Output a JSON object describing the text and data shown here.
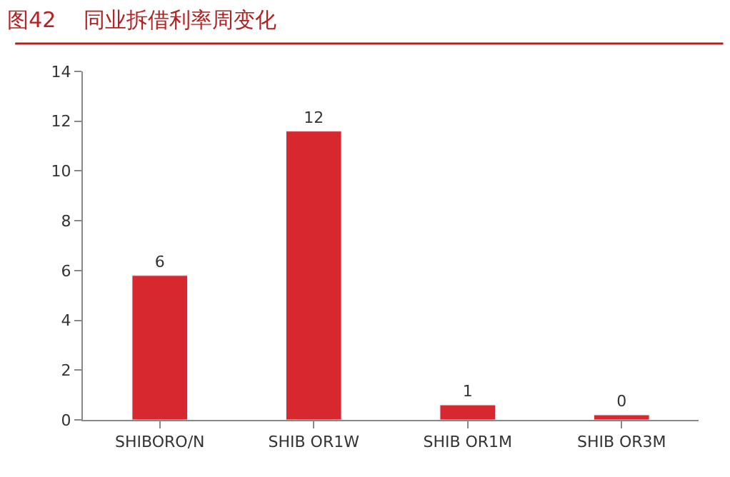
{
  "chart_data": {
    "type": "bar",
    "title": "图42    同业拆借利率周变化",
    "categories": [
      "SHIBORO/N",
      "SHIB OR1W",
      "SHIB OR1M",
      "SHIB OR3M"
    ],
    "values": [
      5.8,
      11.6,
      0.6,
      0.2
    ],
    "value_labels": [
      "6",
      "12",
      "1",
      "0"
    ],
    "color": "#d7282f",
    "ylim": [
      0,
      14
    ],
    "yticks": [
      0,
      2,
      4,
      6,
      8,
      10,
      12,
      14
    ]
  }
}
